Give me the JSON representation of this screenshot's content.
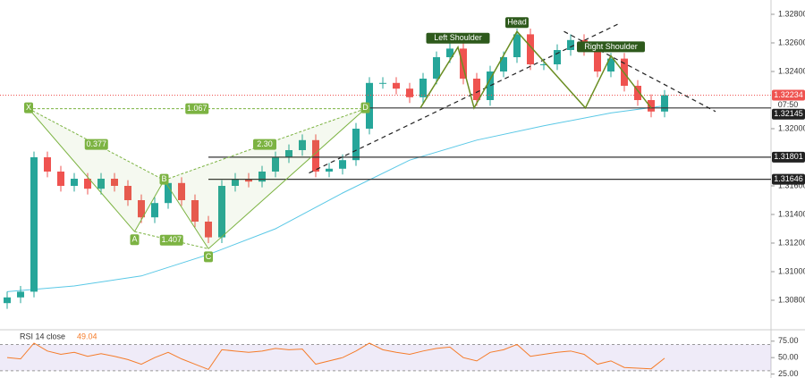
{
  "chart_data": {
    "type": "candlestick",
    "ylim": [
      1.306,
      1.329
    ],
    "yticks": [
      {
        "value": 1.328,
        "label": "1.32800"
      },
      {
        "value": 1.326,
        "label": "1.32600"
      },
      {
        "value": 1.324,
        "label": "1.32400"
      },
      {
        "value": 1.32,
        "label": "1.32000"
      },
      {
        "value": 1.316,
        "label": "1.31600"
      },
      {
        "value": 1.314,
        "label": "1.31400"
      },
      {
        "value": 1.312,
        "label": "1.31200"
      },
      {
        "value": 1.31,
        "label": "1.31000"
      },
      {
        "value": 1.308,
        "label": "1.30800"
      }
    ],
    "up_color": "#26a69a",
    "down_color": "#ef5350",
    "open": [
      1.3078,
      1.3082,
      1.3086,
      1.318,
      1.317,
      1.316,
      1.3165,
      1.3158,
      1.3165,
      1.316,
      1.315,
      1.3138,
      1.3148,
      1.3162,
      1.315,
      1.3135,
      1.3124,
      1.316,
      1.3165,
      1.3163,
      1.317,
      1.318,
      1.3185,
      1.3192,
      1.317,
      1.3172,
      1.3178,
      1.32,
      1.3232,
      1.3232,
      1.3228,
      1.3222,
      1.3235,
      1.325,
      1.3256,
      1.3235,
      1.322,
      1.324,
      1.325,
      1.3266,
      1.3245,
      1.3245,
      1.3255,
      1.3262,
      1.3255,
      1.324,
      1.3249,
      1.323,
      1.322,
      1.3212
    ],
    "high": [
      1.3086,
      1.309,
      1.3184,
      1.3184,
      1.3174,
      1.3169,
      1.3169,
      1.3169,
      1.3169,
      1.3164,
      1.3154,
      1.3152,
      1.3166,
      1.3166,
      1.3154,
      1.3139,
      1.3164,
      1.3169,
      1.3169,
      1.3174,
      1.3184,
      1.3189,
      1.3196,
      1.3196,
      1.3176,
      1.3182,
      1.3204,
      1.3236,
      1.3236,
      1.3236,
      1.3232,
      1.3239,
      1.3254,
      1.326,
      1.326,
      1.3239,
      1.3244,
      1.3254,
      1.327,
      1.327,
      1.3249,
      1.3259,
      1.3266,
      1.3266,
      1.3259,
      1.3253,
      1.3253,
      1.3234,
      1.3224,
      1.3227
    ],
    "low": [
      1.3074,
      1.3078,
      1.3082,
      1.3166,
      1.3156,
      1.3156,
      1.3154,
      1.3154,
      1.3156,
      1.3146,
      1.3134,
      1.3134,
      1.3144,
      1.3146,
      1.3131,
      1.312,
      1.312,
      1.3156,
      1.3159,
      1.3159,
      1.3166,
      1.3176,
      1.3181,
      1.3166,
      1.3166,
      1.3168,
      1.3174,
      1.3196,
      1.3228,
      1.3224,
      1.3218,
      1.3218,
      1.3231,
      1.3246,
      1.3231,
      1.3216,
      1.3216,
      1.3236,
      1.3246,
      1.3241,
      1.3241,
      1.3241,
      1.3251,
      1.3251,
      1.3236,
      1.3236,
      1.3226,
      1.3216,
      1.3208,
      1.3208
    ],
    "close": [
      1.3082,
      1.3086,
      1.318,
      1.317,
      1.316,
      1.3165,
      1.3158,
      1.3165,
      1.316,
      1.315,
      1.3138,
      1.3148,
      1.3162,
      1.315,
      1.3135,
      1.3124,
      1.316,
      1.3165,
      1.3163,
      1.317,
      1.318,
      1.3185,
      1.3192,
      1.317,
      1.3172,
      1.3178,
      1.32,
      1.3232,
      1.3232,
      1.3228,
      1.3222,
      1.3235,
      1.325,
      1.3256,
      1.3235,
      1.322,
      1.324,
      1.325,
      1.3266,
      1.3245,
      1.3245,
      1.3255,
      1.3262,
      1.3255,
      1.324,
      1.3249,
      1.323,
      1.322,
      1.3212,
      1.32234
    ],
    "countdown": "07:50",
    "moving_average": {
      "color": "#5ac8e6",
      "x": [
        0,
        5,
        10,
        15,
        20,
        25,
        30,
        35,
        40,
        45,
        49
      ],
      "values": [
        1.3086,
        1.309,
        1.3097,
        1.3112,
        1.313,
        1.3155,
        1.3178,
        1.3192,
        1.3202,
        1.3211,
        1.3216
      ]
    },
    "levels": [
      {
        "value": 1.32145,
        "start": 26.7
      },
      {
        "value": 1.31801,
        "start": 15
      },
      {
        "value": 1.31646,
        "start": 15
      }
    ],
    "harmonic": {
      "color": "#7cb342",
      "points": [
        {
          "name": "X",
          "x": 1.6,
          "y": 1.3214
        },
        {
          "name": "A",
          "x": 9.5,
          "y": 1.3128
        },
        {
          "name": "B",
          "x": 11.7,
          "y": 1.3164
        },
        {
          "name": "C",
          "x": 15,
          "y": 1.3116
        },
        {
          "name": "D",
          "x": 26.7,
          "y": 1.3214
        }
      ],
      "ratios": [
        {
          "from": 0,
          "to": 2,
          "label": "0.377"
        },
        {
          "from": 1,
          "to": 3,
          "label": "1.407"
        },
        {
          "from": 2,
          "to": 4,
          "label": "2.30"
        },
        {
          "from": 0,
          "to": 4,
          "label": "1.067"
        }
      ]
    },
    "head_and_shoulders": {
      "color": "#6b8e23",
      "points": [
        {
          "x": 30.8,
          "y": 1.32145
        },
        {
          "x": 33.6,
          "y": 1.3257,
          "label": "Left Shoulder"
        },
        {
          "x": 34.8,
          "y": 1.32145
        },
        {
          "x": 38,
          "y": 1.3268,
          "label": "Head"
        },
        {
          "x": 43.1,
          "y": 1.32145
        },
        {
          "x": 45,
          "y": 1.3251,
          "label": "Right Shoulder"
        },
        {
          "x": 48,
          "y": 1.32145
        }
      ]
    },
    "trend_lines": [
      {
        "x": [
          22.5,
          45.5
        ],
        "y": [
          1.3169,
          1.3273
        ]
      },
      {
        "x": [
          41.5,
          52.8
        ],
        "y": [
          1.3268,
          1.3212
        ]
      }
    ],
    "rsi": {
      "title": "RSI 14 close",
      "color": "#f57c2a",
      "ylim": [
        19,
        91
      ],
      "yticks": [
        {
          "value": 75,
          "label": "75.00"
        },
        {
          "value": 50,
          "label": "50.00"
        },
        {
          "value": 25,
          "label": "25.00"
        }
      ],
      "band": [
        30,
        70
      ],
      "values": [
        50,
        48,
        72,
        60,
        55,
        58,
        52,
        56,
        52,
        47,
        40,
        50,
        58,
        48,
        40,
        32,
        62,
        60,
        58,
        60,
        64,
        62,
        63,
        40,
        45,
        50,
        60,
        72,
        62,
        58,
        55,
        60,
        64,
        66,
        50,
        45,
        58,
        62,
        70,
        52,
        55,
        58,
        60,
        55,
        40,
        45,
        35,
        34,
        33,
        49.04
      ]
    }
  }
}
